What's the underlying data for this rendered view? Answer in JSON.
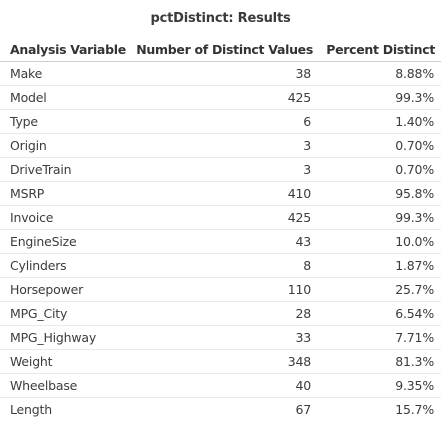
{
  "title": "pctDistinct: Results",
  "table": {
    "headers": [
      "Analysis Variable",
      "Number of Distinct Values",
      "Percent Distinct"
    ],
    "rows": [
      {
        "variable": "Make",
        "distinct": "38",
        "percent": "8.88%"
      },
      {
        "variable": "Model",
        "distinct": "425",
        "percent": "99.3%"
      },
      {
        "variable": "Type",
        "distinct": "6",
        "percent": "1.40%"
      },
      {
        "variable": "Origin",
        "distinct": "3",
        "percent": "0.70%"
      },
      {
        "variable": "DriveTrain",
        "distinct": "3",
        "percent": "0.70%"
      },
      {
        "variable": "MSRP",
        "distinct": "410",
        "percent": "95.8%"
      },
      {
        "variable": "Invoice",
        "distinct": "425",
        "percent": "99.3%"
      },
      {
        "variable": "EngineSize",
        "distinct": "43",
        "percent": "10.0%"
      },
      {
        "variable": "Cylinders",
        "distinct": "8",
        "percent": "1.87%"
      },
      {
        "variable": "Horsepower",
        "distinct": "110",
        "percent": "25.7%"
      },
      {
        "variable": "MPG_City",
        "distinct": "28",
        "percent": "6.54%"
      },
      {
        "variable": "MPG_Highway",
        "distinct": "33",
        "percent": "7.71%"
      },
      {
        "variable": "Weight",
        "distinct": "348",
        "percent": "81.3%"
      },
      {
        "variable": "Wheelbase",
        "distinct": "40",
        "percent": "9.35%"
      },
      {
        "variable": "Length",
        "distinct": "67",
        "percent": "15.7%"
      }
    ]
  }
}
